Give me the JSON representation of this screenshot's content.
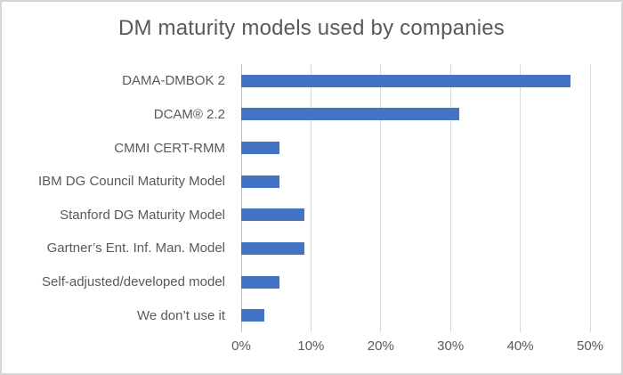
{
  "chart_data": {
    "type": "bar",
    "orientation": "horizontal",
    "title": "DM maturity models used by companies",
    "categories": [
      "DAMA-DMBOK 2",
      "DCAM® 2.2",
      "CMMI CERT-RMM",
      "IBM DG Council Maturity Model",
      "Stanford DG Maturity Model",
      "Gartner’s Ent. Inf. Man. Model",
      "Self-adjusted/developed model",
      "We don’t use it"
    ],
    "values": [
      47.2,
      31.3,
      5.5,
      5.5,
      9.0,
      9.0,
      5.5,
      3.3
    ],
    "unit": "%",
    "xlabel": "",
    "ylabel": "",
    "xlim": [
      0,
      50
    ],
    "x_ticks": [
      "0%",
      "10%",
      "20%",
      "30%",
      "40%",
      "50%"
    ],
    "grid": "vertical-gridlines-on",
    "legend": "none",
    "bar_color": "#4472C4",
    "text_color": "#595959",
    "gridline_color": "#D9D9D9",
    "axis_line_color": "#C0C0C0",
    "frame_border_color": "#D6D6D6"
  }
}
